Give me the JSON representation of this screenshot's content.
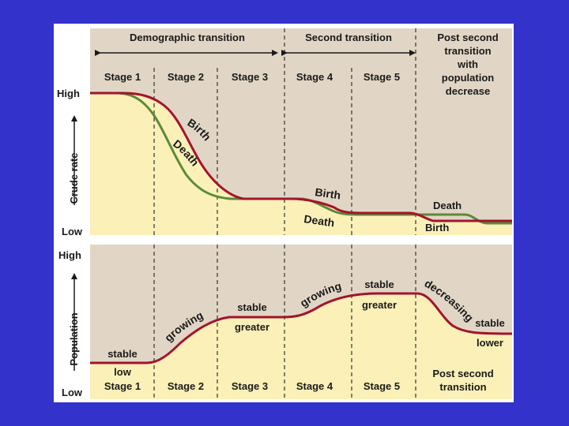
{
  "colors": {
    "background": "#3333cc",
    "panel_tan": "#e1d6c5",
    "fill_yellow": "#fbf0b7",
    "birth_line": "#a3142b",
    "death_line": "#5d8a3a",
    "population_line": "#a3142b"
  },
  "header": {
    "demographic_transition": "Demographic transition",
    "second_transition": "Second transition",
    "post_second_line1": "Post second",
    "post_second_line2": "transition",
    "post_second_line3": "with",
    "post_second_line4": "population",
    "post_second_line5": "decrease"
  },
  "stages": [
    "Stage 1",
    "Stage 2",
    "Stage 3",
    "Stage 4",
    "Stage 5"
  ],
  "top_chart": {
    "y_axis_label": "Crude rate",
    "high": "High",
    "low": "Low",
    "labels": {
      "birth_curved": "Birth",
      "death_curved": "Death",
      "birth_stage4": "Birth",
      "death_stage4": "Death",
      "death_post": "Death",
      "birth_post": "Birth"
    }
  },
  "bottom_chart": {
    "y_axis_label": "Population",
    "high": "High",
    "low": "Low",
    "labels": {
      "stable_1": "stable",
      "low_1": "low",
      "growing_2": "growing",
      "stable_3": "stable",
      "greater_3": "greater",
      "growing_4": "growing",
      "stable_5": "stable",
      "greater_5": "greater",
      "decreasing": "decreasing",
      "stable_post": "stable",
      "lower_post": "lower",
      "post_second_line1": "Post second",
      "post_second_line2": "transition"
    }
  }
}
